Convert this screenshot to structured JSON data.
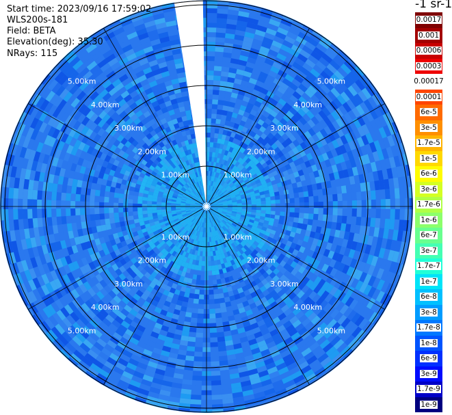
{
  "header": {
    "start_time": "Start time: 2023/09/16 17:59:02",
    "instrument": "WLS200s-181",
    "field": "Field: BETA",
    "elevation": "Elevation(deg): 35.30",
    "nrays": "NRays: 115"
  },
  "colorbar": {
    "units_label": "-1 sr-1",
    "entries": [
      {
        "label": "0.0017",
        "color": "#7f0000"
      },
      {
        "label": "0.001",
        "color": "#a30000"
      },
      {
        "label": "0.0006",
        "color": "#c80000"
      },
      {
        "label": "0.0003",
        "color": "#ee0000"
      },
      {
        "label": "0.00017",
        "color": "#ffffff"
      },
      {
        "label": "0.0001",
        "color": "#ff4500"
      },
      {
        "label": "6e-5",
        "color": "#ff6a00"
      },
      {
        "label": "3e-5",
        "color": "#ff8f00"
      },
      {
        "label": "1.7e-5",
        "color": "#ffb400"
      },
      {
        "label": "1e-5",
        "color": "#ffd800"
      },
      {
        "label": "6e-6",
        "color": "#fffc00"
      },
      {
        "label": "3e-6",
        "color": "#d4ff23"
      },
      {
        "label": "1.7e-6",
        "color": "#b0ff47"
      },
      {
        "label": "1e-6",
        "color": "#8cff6b"
      },
      {
        "label": "6e-7",
        "color": "#68ff8f"
      },
      {
        "label": "3e-7",
        "color": "#44ffb3"
      },
      {
        "label": "1.7e-7",
        "color": "#20ffd7"
      },
      {
        "label": "1e-7",
        "color": "#00e4f8"
      },
      {
        "label": "6e-8",
        "color": "#00c0ff"
      },
      {
        "label": "3e-8",
        "color": "#009cff"
      },
      {
        "label": "1.7e-8",
        "color": "#0078ff"
      },
      {
        "label": "1e-8",
        "color": "#0054ff"
      },
      {
        "label": "6e-9",
        "color": "#0030ff"
      },
      {
        "label": "3e-9",
        "color": "#000cff"
      },
      {
        "label": "1.7e-9",
        "color": "#0000c8"
      },
      {
        "label": "1e-9",
        "color": "#00007f"
      }
    ]
  },
  "chart_data": {
    "type": "heatmap",
    "projection": "polar-ppi",
    "field": "BETA",
    "elevation_deg": 35.3,
    "nrays": 115,
    "range_rings_km": [
      1.0,
      2.0,
      3.0,
      4.0,
      5.0
    ],
    "range_ring_labels": [
      "1.00km",
      "2.00km",
      "3.00km",
      "4.00km",
      "5.00km"
    ],
    "azimuth_spokes_deg": [
      0,
      30,
      60,
      90,
      120,
      150,
      180,
      210,
      240,
      270,
      300,
      330
    ],
    "max_range_km": 5.1,
    "no_data_sector_deg": [
      351,
      359
    ],
    "dominant_value_range": [
      "1e-8",
      "1e-7"
    ],
    "near_range_value": "6e-8",
    "colors": {
      "background": "#2a78ee",
      "near": "#1ea5f2",
      "grid": "#000000",
      "label": "#ffffff"
    }
  }
}
